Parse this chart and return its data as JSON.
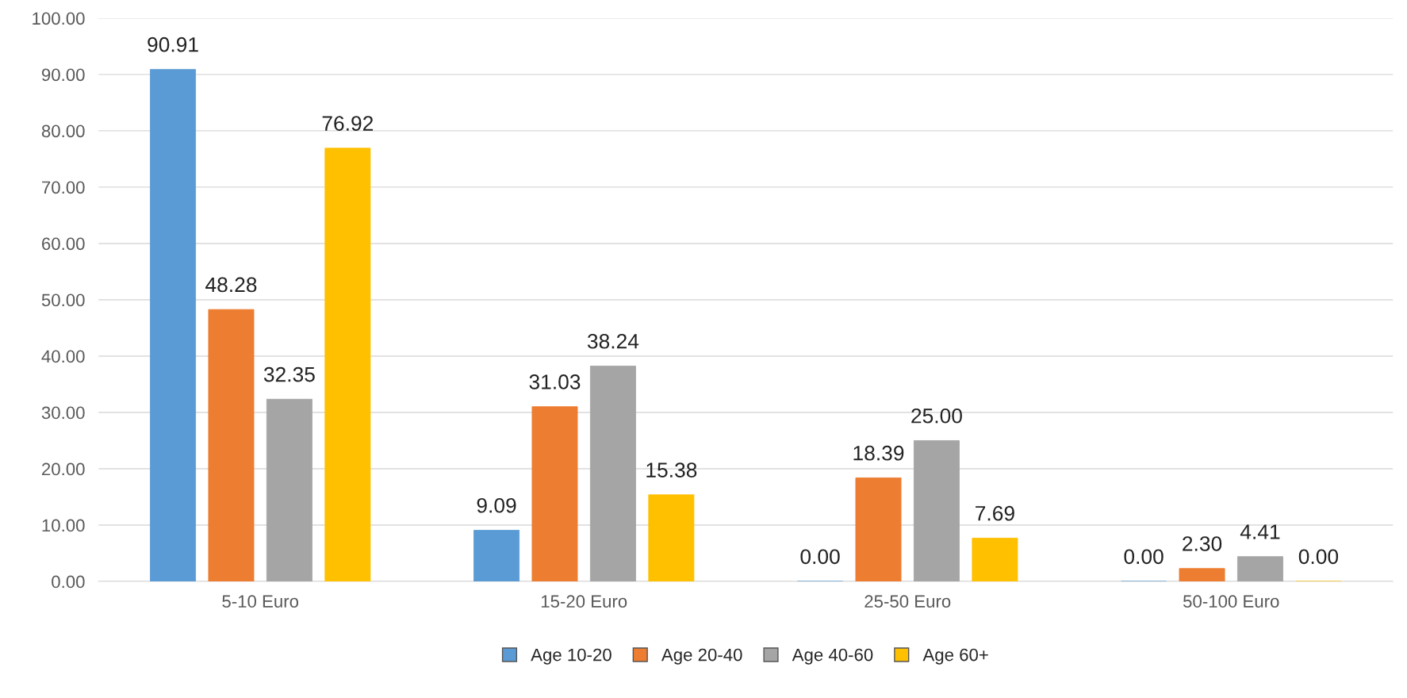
{
  "chart_data": {
    "type": "bar",
    "categories": [
      "5-10 Euro",
      "15-20 Euro",
      "25-50 Euro",
      "50-100 Euro"
    ],
    "series": [
      {
        "name": "Age 10-20",
        "color": "#5b9bd5",
        "values": [
          90.91,
          9.09,
          0.0,
          0.0
        ],
        "value_labels": [
          "90.91",
          "9.09",
          "0.00",
          "0.00"
        ]
      },
      {
        "name": "Age 20-40",
        "color": "#ed7d31",
        "values": [
          48.28,
          31.03,
          18.39,
          2.3
        ],
        "value_labels": [
          "48.28",
          "31.03",
          "18.39",
          "2.30"
        ]
      },
      {
        "name": "Age 40-60",
        "color": "#a5a5a5",
        "values": [
          32.35,
          38.24,
          25.0,
          4.41
        ],
        "value_labels": [
          "32.35",
          "38.24",
          "25.00",
          "4.41"
        ]
      },
      {
        "name": "Age 60+",
        "color": "#ffc000",
        "values": [
          76.92,
          15.38,
          7.69,
          0.0
        ],
        "value_labels": [
          "76.92",
          "15.38",
          "7.69",
          "0.00"
        ]
      }
    ],
    "ylim": [
      0,
      100
    ],
    "yticks": [
      {
        "value": 0,
        "label": "0.00"
      },
      {
        "value": 10,
        "label": "10.00"
      },
      {
        "value": 20,
        "label": "20.00"
      },
      {
        "value": 30,
        "label": "30.00"
      },
      {
        "value": 40,
        "label": "40.00"
      },
      {
        "value": 50,
        "label": "50.00"
      },
      {
        "value": 60,
        "label": "60.00"
      },
      {
        "value": 70,
        "label": "70.00"
      },
      {
        "value": 80,
        "label": "80.00"
      },
      {
        "value": 90,
        "label": "90.00"
      },
      {
        "value": 100,
        "label": "100.00"
      }
    ],
    "grid": "y",
    "legend": "bottom"
  }
}
